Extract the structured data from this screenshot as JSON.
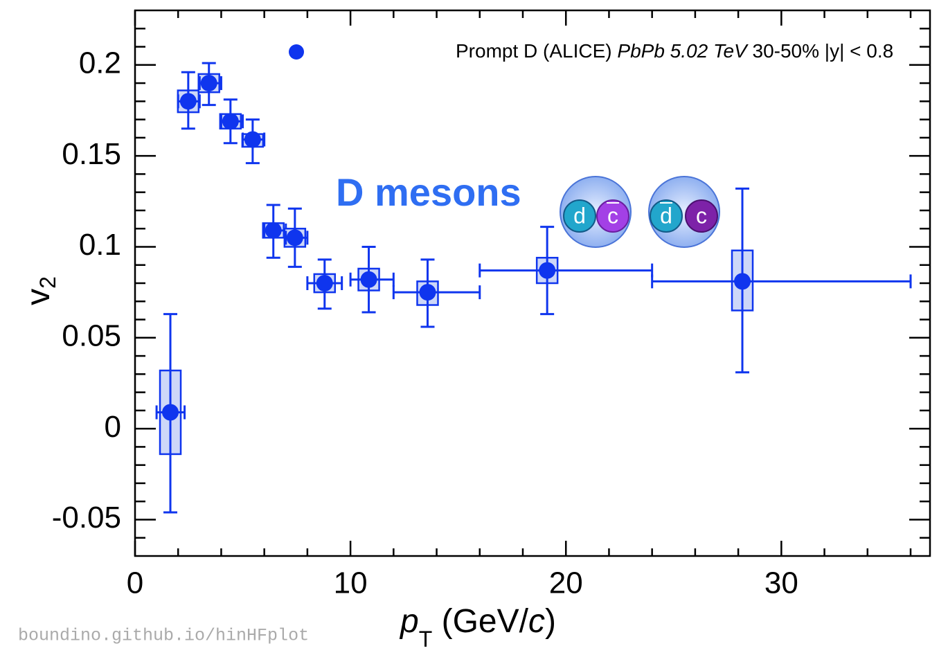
{
  "chart_data": {
    "type": "scatter",
    "xlabel": [
      "p",
      "T",
      " (GeV/",
      "c",
      ")"
    ],
    "ylabel": [
      "v",
      "2"
    ],
    "xlim": [
      0,
      36.9
    ],
    "ylim": [
      -0.07,
      0.23
    ],
    "xticks": [
      0,
      10,
      20,
      30
    ],
    "xticks_minor": [
      2,
      4,
      6,
      8,
      12,
      14,
      16,
      18,
      22,
      24,
      26,
      28,
      32,
      34,
      36
    ],
    "yticks": [
      -0.05,
      0,
      0.05,
      0.1,
      0.15,
      0.2
    ],
    "yticks_minor": [
      -0.06,
      -0.04,
      -0.03,
      -0.02,
      -0.01,
      0.01,
      0.02,
      0.03,
      0.04,
      0.06,
      0.07,
      0.08,
      0.09,
      0.11,
      0.12,
      0.13,
      0.14,
      0.16,
      0.17,
      0.18,
      0.19,
      0.21,
      0.22
    ],
    "series": [
      {
        "name": "Prompt D (ALICE)",
        "color": "#0f35ee",
        "box_color": "#cdd7f8",
        "x": [
          1.64,
          2.47,
          3.43,
          4.43,
          5.46,
          6.42,
          7.42,
          8.8,
          10.85,
          13.58,
          19.13,
          28.19
        ],
        "values": [
          0.009,
          0.18,
          0.19,
          0.169,
          0.159,
          0.109,
          0.105,
          0.08,
          0.082,
          0.075,
          0.087,
          0.081
        ],
        "stat_low": [
          -0.046,
          0.165,
          0.178,
          0.157,
          0.146,
          0.094,
          0.089,
          0.066,
          0.064,
          0.056,
          0.063,
          0.031
        ],
        "stat_high": [
          0.063,
          0.196,
          0.201,
          0.181,
          0.17,
          0.123,
          0.121,
          0.093,
          0.1,
          0.093,
          0.111,
          0.132
        ],
        "syst_low": [
          -0.014,
          0.174,
          0.185,
          0.165,
          0.155,
          0.105,
          0.1,
          0.075,
          0.076,
          0.068,
          0.08,
          0.065
        ],
        "syst_high": [
          0.032,
          0.186,
          0.195,
          0.173,
          0.162,
          0.113,
          0.11,
          0.085,
          0.088,
          0.081,
          0.094,
          0.098
        ],
        "x_low": [
          1.0,
          2.0,
          3.0,
          4.0,
          5.0,
          6.0,
          7.0,
          8.0,
          10.0,
          12.0,
          16.0,
          24.0
        ],
        "x_high": [
          2.3,
          3.0,
          4.0,
          5.0,
          6.0,
          7.0,
          8.0,
          9.6,
          12.0,
          16.0,
          24.0,
          36.0
        ]
      }
    ],
    "legend_extra": [
      "PbPb 5.02 TeV",
      "30-50% |y| < 0.8"
    ],
    "annotation": "D mesons",
    "mesons": [
      [
        "d",
        "c"
      ],
      [
        "d",
        "c"
      ]
    ],
    "watermark": "boundino.github.io/hinHFplot"
  }
}
